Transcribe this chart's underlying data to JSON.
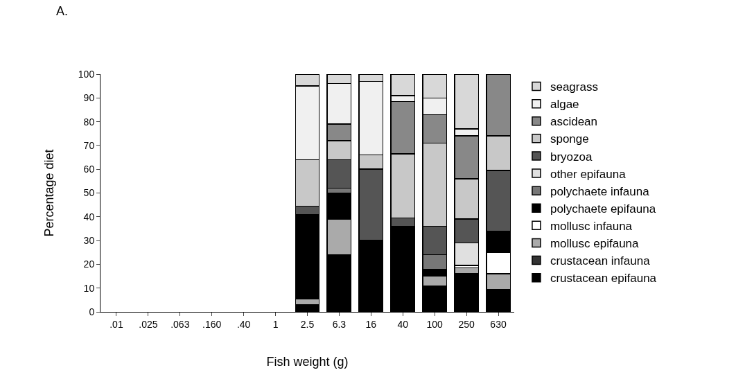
{
  "chart_data": {
    "type": "bar",
    "stacked": true,
    "xlabel": "Fish weight (g)",
    "ylabel": "Percentage diet",
    "annotations": [
      "A."
    ],
    "categories": [
      ".01",
      ".025",
      ".063",
      ".160",
      ".40",
      "1",
      "2.5",
      "6.3",
      "16",
      "40",
      "100",
      "250",
      "630"
    ],
    "ylim": [
      0,
      100
    ],
    "yticks": [
      0,
      10,
      20,
      30,
      40,
      50,
      60,
      70,
      80,
      90,
      100
    ],
    "legend": "right",
    "series": [
      {
        "name": "crustacean epifauna",
        "color": "#000000",
        "values": [
          null,
          null,
          null,
          null,
          null,
          null,
          3,
          24,
          30,
          36,
          11,
          16,
          9.5
        ]
      },
      {
        "name": "crustacean infauna",
        "color": "#333333",
        "values": [
          null,
          null,
          null,
          null,
          null,
          null,
          null,
          null,
          null,
          null,
          null,
          null,
          null
        ]
      },
      {
        "name": "mollusc epifauna",
        "color": "#aaaaaa",
        "values": [
          null,
          null,
          null,
          null,
          null,
          null,
          2.5,
          15,
          null,
          null,
          4,
          2.5,
          6.5
        ]
      },
      {
        "name": "mollusc infauna",
        "color": "#ffffff",
        "values": [
          null,
          null,
          null,
          null,
          null,
          null,
          null,
          null,
          null,
          null,
          null,
          1,
          9
        ]
      },
      {
        "name": "polychaete epifauna",
        "color": "#000000",
        "values": [
          null,
          null,
          null,
          null,
          null,
          null,
          35.5,
          11,
          null,
          null,
          3,
          null,
          9
        ]
      },
      {
        "name": "polychaete infauna",
        "color": "#777777",
        "values": [
          null,
          null,
          null,
          null,
          null,
          null,
          null,
          2,
          null,
          null,
          6,
          null,
          null
        ]
      },
      {
        "name": "other epifauna",
        "color": "#e0e0e0",
        "values": [
          null,
          null,
          null,
          null,
          null,
          null,
          null,
          null,
          null,
          null,
          null,
          9.5,
          null
        ]
      },
      {
        "name": "bryozoa",
        "color": "#555555",
        "values": [
          null,
          null,
          null,
          null,
          null,
          null,
          3.5,
          12,
          30,
          3.5,
          12,
          10,
          25.5
        ]
      },
      {
        "name": "sponge",
        "color": "#c8c8c8",
        "values": [
          null,
          null,
          null,
          null,
          null,
          null,
          19.5,
          8,
          6,
          27,
          35,
          17,
          14.5
        ]
      },
      {
        "name": "ascidean",
        "color": "#888888",
        "values": [
          null,
          null,
          null,
          null,
          null,
          null,
          null,
          7,
          null,
          22,
          12,
          18,
          26
        ]
      },
      {
        "name": "algae",
        "color": "#f0f0f0",
        "values": [
          null,
          null,
          null,
          null,
          null,
          null,
          31,
          17,
          31,
          2.5,
          7,
          3,
          null
        ]
      },
      {
        "name": "seagrass",
        "color": "#d8d8d8",
        "values": [
          null,
          null,
          null,
          null,
          null,
          null,
          5,
          4,
          3,
          9,
          10,
          23,
          null
        ]
      }
    ]
  }
}
